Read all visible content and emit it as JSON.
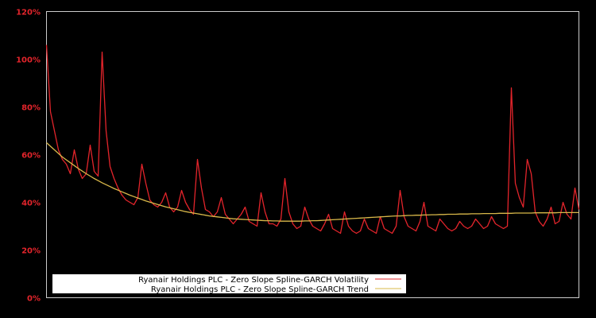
{
  "chart_data": {
    "type": "line",
    "title": "",
    "xlabel": "",
    "ylabel": "",
    "ylim": [
      0,
      120
    ],
    "y_ticks": [
      "0%",
      "20%",
      "40%",
      "60%",
      "80%",
      "100%",
      "120%"
    ],
    "y_tick_values": [
      0,
      20,
      40,
      60,
      80,
      100,
      120
    ],
    "grid": false,
    "legend_position": "lower left",
    "x": [
      0,
      1,
      2,
      3,
      4,
      5,
      6,
      7,
      8,
      9,
      10,
      11,
      12,
      13,
      14,
      15,
      16,
      17,
      18,
      19,
      20,
      21,
      22,
      23,
      24,
      25,
      26,
      27,
      28,
      29,
      30,
      31,
      32,
      33,
      34,
      35,
      36,
      37,
      38,
      39,
      40,
      41,
      42,
      43,
      44,
      45,
      46,
      47,
      48,
      49,
      50,
      51,
      52,
      53,
      54,
      55,
      56,
      57,
      58,
      59,
      60,
      61,
      62,
      63,
      64,
      65,
      66,
      67,
      68,
      69,
      70,
      71,
      72,
      73,
      74,
      75,
      76,
      77,
      78,
      79,
      80,
      81,
      82,
      83,
      84,
      85,
      86,
      87,
      88,
      89,
      90,
      91,
      92,
      93,
      94,
      95,
      96,
      97,
      98,
      99,
      100,
      101,
      102,
      103,
      104,
      105,
      106,
      107,
      108,
      109,
      110,
      111,
      112,
      113,
      114,
      115,
      116,
      117,
      118,
      119,
      120,
      121,
      122,
      123,
      124,
      125,
      126,
      127,
      128,
      129,
      130,
      131,
      132,
      133,
      134
    ],
    "series": [
      {
        "name": "Ryanair Holdings PLC - Zero Slope Spline-GARCH Volatility",
        "color": "#e3242b",
        "values": [
          106,
          78,
          70,
          62,
          58,
          56,
          52,
          62,
          54,
          50,
          52,
          64,
          53,
          51,
          103,
          70,
          55,
          50,
          46,
          43,
          41,
          40,
          39,
          42,
          56,
          48,
          41,
          39,
          38,
          40,
          44,
          38,
          36,
          38,
          45,
          40,
          37,
          35,
          58,
          46,
          37,
          36,
          34,
          36,
          42,
          35,
          33,
          31,
          33,
          35,
          38,
          32,
          31,
          30,
          44,
          36,
          31,
          31,
          30,
          33,
          50,
          36,
          31,
          29,
          30,
          38,
          33,
          30,
          29,
          28,
          31,
          35,
          29,
          28,
          27,
          36,
          30,
          28,
          27,
          28,
          33,
          29,
          28,
          27,
          34,
          29,
          28,
          27,
          30,
          45,
          34,
          30,
          29,
          28,
          32,
          40,
          30,
          29,
          28,
          33,
          31,
          29,
          28,
          29,
          32,
          30,
          29,
          30,
          33,
          31,
          29,
          30,
          34,
          31,
          30,
          29,
          30,
          88,
          48,
          42,
          38,
          58,
          52,
          36,
          32,
          30,
          33,
          38,
          31,
          32,
          40,
          35,
          33,
          46,
          37
        ],
        "note": "approximate sampled values (%) at ~5px intervals across the plot"
      },
      {
        "name": "Ryanair Holdings PLC - Zero Slope Spline-GARCH Trend",
        "color": "#d9b84a",
        "values": [
          65,
          63.5,
          62,
          60.5,
          59,
          57.8,
          56.6,
          55.4,
          54.2,
          53.1,
          52,
          51,
          50,
          49.1,
          48.2,
          47.4,
          46.6,
          45.8,
          45.1,
          44.4,
          43.7,
          43,
          42.4,
          41.8,
          41.2,
          40.6,
          40.1,
          39.6,
          39.1,
          38.6,
          38.1,
          37.7,
          37.3,
          36.9,
          36.5,
          36.1,
          35.8,
          35.5,
          35.2,
          34.9,
          34.6,
          34.3,
          34.1,
          33.9,
          33.7,
          33.5,
          33.3,
          33.1,
          33,
          32.9,
          32.8,
          32.7,
          32.6,
          32.5,
          32.4,
          32.3,
          32.3,
          32.2,
          32.2,
          32.1,
          32.1,
          32.1,
          32.1,
          32.1,
          32.1,
          32.2,
          32.2,
          32.3,
          32.3,
          32.4,
          32.5,
          32.6,
          32.7,
          32.8,
          32.9,
          33,
          33.1,
          33.2,
          33.3,
          33.4,
          33.5,
          33.6,
          33.7,
          33.8,
          33.9,
          34,
          34.1,
          34.2,
          34.3,
          34.3,
          34.4,
          34.5,
          34.5,
          34.6,
          34.6,
          34.7,
          34.7,
          34.8,
          34.8,
          34.9,
          34.9,
          35,
          35,
          35,
          35.1,
          35.1,
          35.1,
          35.2,
          35.2,
          35.2,
          35.3,
          35.3,
          35.3,
          35.3,
          35.4,
          35.4,
          35.4,
          35.4,
          35.5,
          35.5,
          35.5,
          35.5,
          35.5,
          35.6,
          35.6,
          35.6,
          35.6,
          35.6,
          35.6,
          35.7,
          35.7,
          35.7,
          35.7,
          35.7,
          35.7
        ]
      }
    ]
  },
  "legend": {
    "items": [
      {
        "label": "Ryanair Holdings PLC - Zero Slope Spline-GARCH Volatility",
        "color": "#e3242b"
      },
      {
        "label": "Ryanair Holdings PLC - Zero Slope Spline-GARCH Trend",
        "color": "#d9b84a"
      }
    ]
  },
  "axes": {
    "frame_color": "#cccccc",
    "tick_color": "#e3242b"
  }
}
